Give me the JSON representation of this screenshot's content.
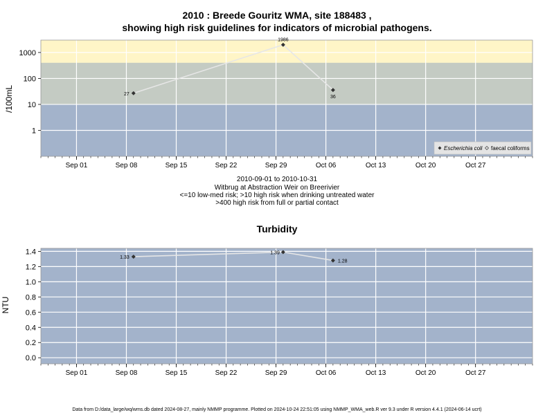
{
  "title": {
    "line1": "2010 : Breede Gouritz WMA, site 188483 ,",
    "line2": "showing high risk guidelines for indicators of microbial pathogens."
  },
  "notes": {
    "range": "2010-09-01 to 2010-10-31",
    "site": "Witbrug at Abstraction Weir on Breerivier",
    "risk1": "<=10 low-med risk; >10 high risk when drinking untreated water",
    "risk2": ">400 high risk from full or partial contact"
  },
  "footer": "Data from D:/data_large/wq/wms.db dated 2024-08-27, mainly NMMP programme. Plotted on 2024-10-24 22:51:05 using NMMP_WMA_web.R ver 9.3 under R version 4.4.1 (2024-06-14 ucrt)",
  "colors": {
    "panel": "#a3b3cb",
    "midband": "#c4cbc3",
    "highband": "#fff5c7",
    "grid": "#ffffff",
    "line": "#e6e6e6",
    "point": "#333333"
  },
  "chart_data": [
    {
      "type": "line",
      "ylabel": "/100mL",
      "yscale": "log",
      "ylim": [
        0.1,
        3000
      ],
      "yticks": [
        1,
        10,
        100,
        1000
      ],
      "ytick_labels": [
        "1",
        "10",
        "100",
        "1000"
      ],
      "xlim": [
        "2010-08-27",
        "2010-11-04"
      ],
      "xticks": [
        "2010-09-01",
        "2010-09-08",
        "2010-09-15",
        "2010-09-22",
        "2010-09-29",
        "2010-10-06",
        "2010-10-13",
        "2010-10-20",
        "2010-10-27"
      ],
      "xtick_labels": [
        "Sep 01",
        "Sep 08",
        "Sep 15",
        "Sep 22",
        "Sep 29",
        "Oct 06",
        "Oct 13",
        "Oct 20",
        "Oct 27"
      ],
      "bands": [
        {
          "from": 0.1,
          "to": 10,
          "risk": "low-med"
        },
        {
          "from": 10,
          "to": 400,
          "risk": "high when drinking untreated water"
        },
        {
          "from": 400,
          "to": 3000,
          "risk": "high from full or partial contact"
        }
      ],
      "series": [
        {
          "name": "Escherichia coli",
          "x": [
            "2010-09-09",
            "2010-09-30",
            "2010-10-07"
          ],
          "y": [
            27,
            1986,
            36
          ],
          "labels": [
            "27",
            "1986",
            "36"
          ]
        }
      ],
      "legend": {
        "placement": "bottom-right",
        "entries": [
          "Escherichia coli",
          "faecal coliforms"
        ]
      },
      "grid": true
    },
    {
      "type": "line",
      "title": "Turbidity",
      "ylabel": "NTU",
      "ylim": [
        -0.08,
        1.44
      ],
      "yticks": [
        0,
        0.2,
        0.4,
        0.6,
        0.8,
        1.0,
        1.2,
        1.4
      ],
      "ytick_labels": [
        "0.0",
        "0.2",
        "0.4",
        "0.6",
        "0.8",
        "1.0",
        "1.2",
        "1.4"
      ],
      "xlim": [
        "2010-08-27",
        "2010-11-04"
      ],
      "xticks": [
        "2010-09-01",
        "2010-09-08",
        "2010-09-15",
        "2010-09-22",
        "2010-09-29",
        "2010-10-06",
        "2010-10-13",
        "2010-10-20",
        "2010-10-27"
      ],
      "xtick_labels": [
        "Sep 01",
        "Sep 08",
        "Sep 15",
        "Sep 22",
        "Sep 29",
        "Oct 06",
        "Oct 13",
        "Oct 20",
        "Oct 27"
      ],
      "series": [
        {
          "x": [
            "2010-09-09",
            "2010-09-30",
            "2010-10-07"
          ],
          "y": [
            1.33,
            1.39,
            1.28
          ],
          "labels": [
            "1.33",
            "1.39",
            "1.28"
          ]
        }
      ],
      "grid": true
    }
  ]
}
